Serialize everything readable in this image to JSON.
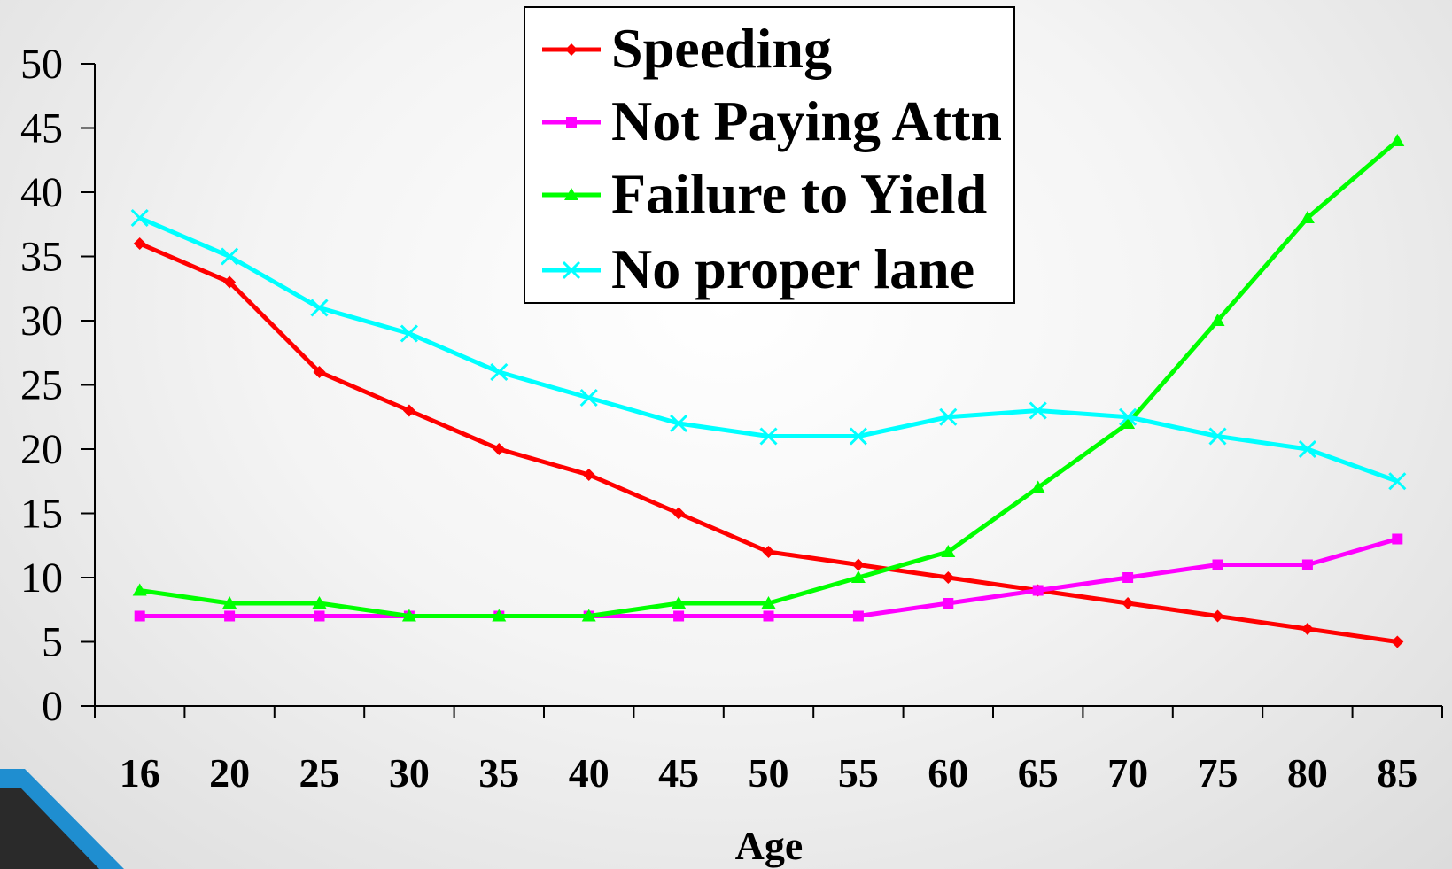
{
  "chart_data": {
    "type": "line",
    "title": "",
    "xlabel": "Age",
    "ylabel": "",
    "categories": [
      "16",
      "20",
      "25",
      "30",
      "35",
      "40",
      "45",
      "50",
      "55",
      "60",
      "65",
      "70",
      "75",
      "80",
      "85"
    ],
    "ylim": [
      0,
      50
    ],
    "yticks": [
      0,
      5,
      10,
      15,
      20,
      25,
      30,
      35,
      40,
      45,
      50
    ],
    "ytick_labels": [
      "0",
      "5",
      "10",
      "15",
      "20",
      "25",
      "30",
      "35",
      "40",
      "45",
      "50"
    ],
    "grid": false,
    "legend_position": "top-center",
    "series": [
      {
        "name": "Speeding",
        "color": "#ff0000",
        "marker": "diamond",
        "values": [
          36,
          33,
          26,
          23,
          20,
          18,
          15,
          12,
          11,
          10,
          9,
          8,
          7,
          6,
          5
        ]
      },
      {
        "name": "Not Paying Attn",
        "color": "#ff00ff",
        "marker": "square",
        "values": [
          7,
          7,
          7,
          7,
          7,
          7,
          7,
          7,
          7,
          8,
          9,
          10,
          11,
          11,
          13
        ]
      },
      {
        "name": "Failure to Yield",
        "color": "#00ff00",
        "marker": "triangle",
        "values": [
          9,
          8,
          8,
          7,
          7,
          7,
          8,
          8,
          10,
          12,
          17,
          22,
          30,
          38,
          44
        ]
      },
      {
        "name": "No proper lane",
        "color": "#00ffff",
        "marker": "x",
        "values": [
          38,
          35,
          31,
          29,
          26,
          24,
          22,
          21,
          21,
          22.5,
          23,
          22.5,
          21,
          20,
          17.5
        ]
      }
    ]
  }
}
